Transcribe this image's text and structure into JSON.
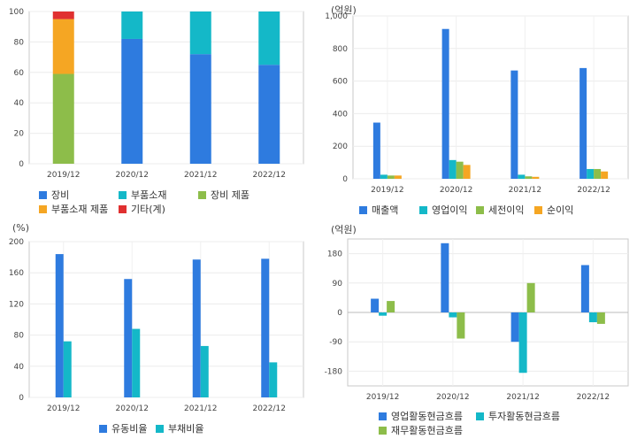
{
  "chart_data": [
    {
      "type": "bar",
      "stacked": true,
      "categories": [
        "2019/12",
        "2020/12",
        "2021/12",
        "2022/12"
      ],
      "ylim": [
        0,
        100
      ],
      "yticks": [
        0,
        20,
        40,
        60,
        80,
        100
      ],
      "series": [
        {
          "name": "장비",
          "color": "#2e7bdf",
          "values": [
            0,
            82,
            72,
            65
          ]
        },
        {
          "name": "부품소재",
          "color": "#14b8c8",
          "values": [
            0,
            18,
            28,
            35
          ]
        },
        {
          "name": "장비 제품",
          "color": "#8dbd4a",
          "values": [
            59,
            0,
            0,
            0
          ]
        },
        {
          "name": "부품소재 제품",
          "color": "#f5a623",
          "values": [
            36,
            0,
            0,
            0
          ]
        },
        {
          "name": "기타(계)",
          "color": "#e03030",
          "values": [
            5,
            0,
            0,
            0
          ]
        }
      ]
    },
    {
      "type": "bar",
      "unit": "(억원)",
      "categories": [
        "2019/12",
        "2020/12",
        "2021/12",
        "2022/12"
      ],
      "ylim": [
        0,
        1000
      ],
      "yticks": [
        0,
        200,
        400,
        600,
        800,
        1000
      ],
      "ytick_labels": [
        "0",
        "200",
        "400",
        "600",
        "800",
        "1,000"
      ],
      "series": [
        {
          "name": "매출액",
          "color": "#2e7bdf",
          "values": [
            345,
            920,
            665,
            680
          ]
        },
        {
          "name": "영업이익",
          "color": "#14b8c8",
          "values": [
            25,
            115,
            25,
            60
          ]
        },
        {
          "name": "세전이익",
          "color": "#8dbd4a",
          "values": [
            20,
            105,
            15,
            60
          ]
        },
        {
          "name": "순이익",
          "color": "#f5a623",
          "values": [
            20,
            85,
            12,
            45
          ]
        }
      ]
    },
    {
      "type": "bar",
      "unit": "(%)",
      "categories": [
        "2019/12",
        "2020/12",
        "2021/12",
        "2022/12"
      ],
      "ylim": [
        0,
        200
      ],
      "yticks": [
        0,
        40,
        80,
        120,
        160,
        200
      ],
      "series": [
        {
          "name": "유동비율",
          "color": "#2e7bdf",
          "values": [
            184,
            152,
            177,
            178
          ]
        },
        {
          "name": "부채비율",
          "color": "#14b8c8",
          "values": [
            72,
            88,
            66,
            45
          ]
        }
      ]
    },
    {
      "type": "bar",
      "unit": "(억원)",
      "categories": [
        "2019/12",
        "2020/12",
        "2021/12",
        "2022/12"
      ],
      "ylim": [
        -225,
        225
      ],
      "yticks": [
        -180,
        -90,
        0,
        90,
        180
      ],
      "series": [
        {
          "name": "영업활동현금흐름",
          "color": "#2e7bdf",
          "values": [
            42,
            212,
            -90,
            145
          ]
        },
        {
          "name": "투자활동현금흐름",
          "color": "#14b8c8",
          "values": [
            -10,
            -15,
            -185,
            -30
          ]
        },
        {
          "name": "재무활동현금흐름",
          "color": "#8dbd4a",
          "values": [
            35,
            -80,
            90,
            -35
          ]
        }
      ]
    }
  ]
}
